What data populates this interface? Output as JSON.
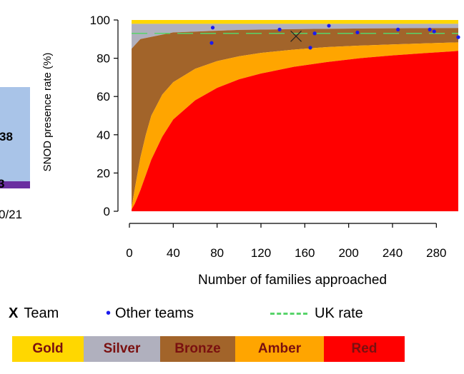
{
  "chart_data": {
    "type": "area",
    "xlabel": "Number of families approached",
    "ylabel": "SNOD presence rate (%)",
    "xlim": [
      0,
      300
    ],
    "ylim": [
      0,
      100
    ],
    "x_ticks": [
      0,
      40,
      80,
      120,
      160,
      200,
      240,
      280
    ],
    "y_ticks": [
      0,
      20,
      40,
      60,
      80,
      100
    ],
    "grid": false,
    "bands": [
      {
        "name": "Gold",
        "color": "#FFD700"
      },
      {
        "name": "Silver",
        "color": "#B0B0BE"
      },
      {
        "name": "Bronze",
        "color": "#A2642A"
      },
      {
        "name": "Amber",
        "color": "#FFA500"
      },
      {
        "name": "Red",
        "color": "#FF0000"
      }
    ],
    "band_boundaries": {
      "gold_top": 100,
      "silver_top": 98,
      "silver_bronze": [
        [
          2,
          85
        ],
        [
          10,
          90
        ],
        [
          40,
          93.5
        ],
        [
          100,
          94.8
        ],
        [
          160,
          95.3
        ],
        [
          220,
          95.6
        ],
        [
          300,
          95.8
        ]
      ],
      "bronze_amber": [
        [
          2,
          2
        ],
        [
          5,
          12
        ],
        [
          10,
          28
        ],
        [
          15,
          40
        ],
        [
          20,
          50
        ],
        [
          30,
          61
        ],
        [
          40,
          67.5
        ],
        [
          60,
          74.5
        ],
        [
          80,
          78.5
        ],
        [
          100,
          81
        ],
        [
          120,
          82.8
        ],
        [
          150,
          84.5
        ],
        [
          180,
          85.8
        ],
        [
          210,
          86.6
        ],
        [
          240,
          87.2
        ],
        [
          270,
          87.8
        ],
        [
          300,
          88.3
        ]
      ],
      "amber_red": [
        [
          2,
          1
        ],
        [
          5,
          4
        ],
        [
          10,
          11
        ],
        [
          15,
          19
        ],
        [
          20,
          27
        ],
        [
          30,
          39
        ],
        [
          40,
          48
        ],
        [
          60,
          58
        ],
        [
          80,
          64.5
        ],
        [
          100,
          69
        ],
        [
          120,
          72
        ],
        [
          150,
          75.5
        ],
        [
          180,
          78
        ],
        [
          210,
          80
        ],
        [
          240,
          81.5
        ],
        [
          270,
          82.7
        ],
        [
          300,
          83.8
        ]
      ]
    },
    "team": {
      "x": 152,
      "y": 91.5,
      "label": "Team"
    },
    "other_teams": {
      "label": "Other teams",
      "points": [
        [
          76,
          96
        ],
        [
          75,
          88
        ],
        [
          137,
          95
        ],
        [
          165,
          85.5
        ],
        [
          169,
          93
        ],
        [
          182,
          97
        ],
        [
          208,
          93.5
        ],
        [
          245,
          95
        ],
        [
          274,
          95
        ],
        [
          278,
          94
        ],
        [
          300,
          91
        ]
      ]
    },
    "uk_rate": {
      "value": 93,
      "label": "UK rate"
    }
  },
  "left_fragment": {
    "value_top": "38",
    "value_bottom": "3",
    "category": "0/21"
  },
  "legend": {
    "team_marker": "X",
    "team_label": "Team",
    "other_marker": "•",
    "other_label": "Other teams",
    "uk_label": "UK rate"
  },
  "band_strip": {
    "labels": [
      "Gold",
      "Silver",
      "Bronze",
      "Amber",
      "Red"
    ],
    "colors": [
      "#FFD700",
      "#B0B0BE",
      "#A2642A",
      "#FFA500",
      "#FF0000"
    ]
  },
  "colors": {
    "uk_rate_line": "#58D46A",
    "other_teams_point": "#1A1AEE",
    "left_bar": "#A9C4E8",
    "left_bar_base": "#6A2FA0"
  }
}
